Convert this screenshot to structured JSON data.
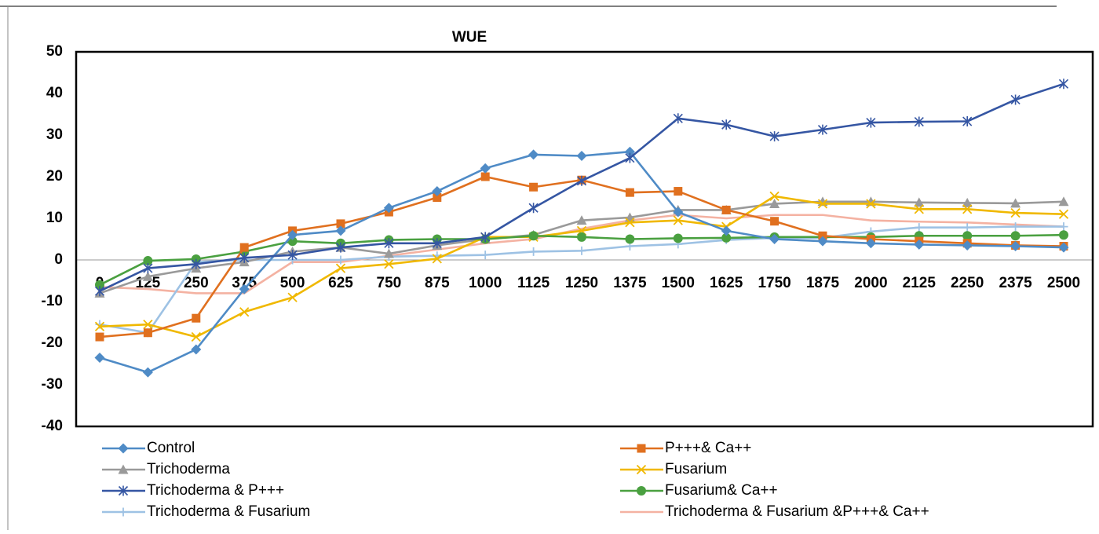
{
  "chart_data": {
    "type": "line",
    "title": "WUE",
    "categories": [
      "0",
      "125",
      "250",
      "375",
      "500",
      "625",
      "750",
      "875",
      "1000",
      "1125",
      "1250",
      "1375",
      "1500",
      "1625",
      "1750",
      "1875",
      "2000",
      "2125",
      "2250",
      "2375",
      "2500"
    ],
    "ylim": [
      -40,
      50
    ],
    "yticks": [
      -40,
      -30,
      -20,
      -10,
      0,
      10,
      20,
      30,
      40,
      50
    ],
    "grid": false,
    "legend": "bottom",
    "series": [
      {
        "name": "Control",
        "color": "#4f8bc6",
        "marker": "diamond",
        "values": [
          -23.5,
          -27,
          -21.5,
          -7,
          6,
          7,
          12.5,
          16.5,
          22,
          25.3,
          25,
          26,
          11.5,
          7,
          5,
          4.5,
          4,
          3.7,
          3.5,
          3.3,
          3
        ]
      },
      {
        "name": "P+++& Ca++",
        "color": "#e0701f",
        "marker": "square",
        "values": [
          -18.5,
          -17.5,
          -14,
          3,
          7,
          8.7,
          11.5,
          15,
          20,
          17.5,
          19.2,
          16.2,
          16.5,
          12,
          9.3,
          5.8,
          5,
          4.5,
          4,
          3.5,
          3.3
        ]
      },
      {
        "name": "Trichoderma",
        "color": "#9a9a9a",
        "marker": "triangle",
        "values": [
          -8,
          -4,
          -2,
          -0.5,
          2,
          3,
          1.5,
          3.5,
          5,
          6,
          9.5,
          10.2,
          12,
          12,
          13.5,
          14,
          14,
          13.8,
          13.7,
          13.6,
          14
        ]
      },
      {
        "name": "Fusarium",
        "color": "#f0b800",
        "marker": "x",
        "values": [
          -16,
          -15.5,
          -18.5,
          -12.5,
          -9,
          -2,
          -1,
          0.3,
          5.5,
          5.5,
          7,
          9,
          9.5,
          8,
          15.3,
          13.5,
          13.5,
          12.2,
          12.2,
          11.3,
          11
        ]
      },
      {
        "name": " Trichoderma & P+++",
        "color": "#3556a3",
        "marker": "star",
        "values": [
          -7.5,
          -2,
          -1,
          0.5,
          1.2,
          3,
          4,
          4,
          5.5,
          12.5,
          19,
          24.5,
          34,
          32.5,
          29.7,
          31.3,
          33,
          33.2,
          33.3,
          38.5,
          42.3
        ]
      },
      {
        "name": "Fusarium& Ca++",
        "color": "#4aa040",
        "marker": "circle",
        "values": [
          -6,
          -0.2,
          0.2,
          2,
          4.5,
          4,
          4.8,
          5,
          5,
          5.8,
          5.5,
          5,
          5.2,
          5.3,
          5.5,
          5.5,
          5.5,
          5.8,
          5.8,
          5.8,
          6
        ]
      },
      {
        "name": "Trichoderma & Fusarium",
        "color": "#9ec2e4",
        "marker": "plus",
        "values": [
          -15.5,
          -17.5,
          -0.5,
          0,
          0,
          0,
          0.8,
          1,
          1.2,
          2,
          2.2,
          3.3,
          3.8,
          4.8,
          5.3,
          5.3,
          6.8,
          7.8,
          7.8,
          8,
          8
        ]
      },
      {
        "name": "Trichoderma & Fusarium &P+++& Ca++",
        "color": "#f4b2a2",
        "marker": "none",
        "values": [
          -6.5,
          -7,
          -8,
          -8,
          -0.5,
          -0.5,
          1,
          2.5,
          4,
          5,
          7.5,
          9.5,
          10.8,
          10,
          10.8,
          10.8,
          9.5,
          9.2,
          9,
          8.5,
          8
        ]
      }
    ]
  }
}
